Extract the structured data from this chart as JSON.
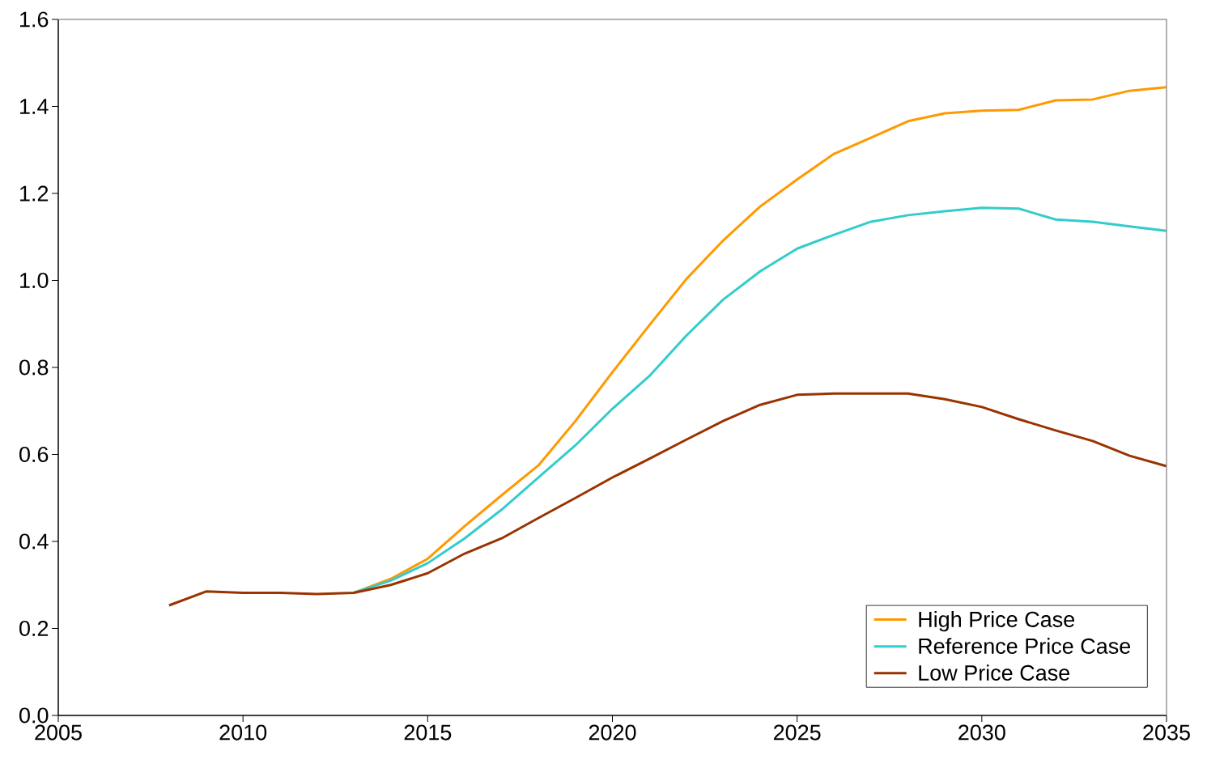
{
  "chart_data": {
    "type": "line",
    "x": [
      2008,
      2009,
      2010,
      2011,
      2012,
      2013,
      2014,
      2015,
      2016,
      2017,
      2018,
      2019,
      2020,
      2021,
      2022,
      2023,
      2024,
      2025,
      2026,
      2027,
      2028,
      2029,
      2030,
      2031,
      2032,
      2033,
      2034,
      2035
    ],
    "series": [
      {
        "name": "High Price Case",
        "color": "#ff9900",
        "values": [
          null,
          null,
          null,
          null,
          null,
          0.282,
          0.314,
          0.36,
          0.435,
          0.506,
          0.575,
          0.677,
          0.789,
          0.897,
          1.003,
          1.092,
          1.17,
          1.232,
          1.291,
          1.328,
          1.366,
          1.384,
          1.39,
          1.392,
          1.414,
          1.416,
          1.436,
          1.444
        ]
      },
      {
        "name": "Reference Price Case",
        "color": "#33cccc",
        "values": [
          null,
          null,
          null,
          null,
          null,
          0.282,
          0.31,
          0.35,
          0.407,
          0.473,
          0.547,
          0.621,
          0.705,
          0.78,
          0.873,
          0.956,
          1.021,
          1.073,
          1.105,
          1.135,
          1.15,
          1.159,
          1.167,
          1.165,
          1.14,
          1.135,
          1.124,
          1.114
        ]
      },
      {
        "name": "Low Price Case",
        "color": "#993300",
        "values": [
          0.253,
          0.285,
          0.282,
          0.282,
          0.279,
          0.282,
          0.3,
          0.327,
          0.372,
          0.407,
          0.454,
          0.5,
          0.547,
          0.59,
          0.634,
          0.677,
          0.714,
          0.737,
          0.74,
          0.74,
          0.74,
          0.727,
          0.709,
          0.681,
          0.655,
          0.631,
          0.597,
          0.573
        ]
      }
    ],
    "xlim": [
      2005,
      2035
    ],
    "xticks": [
      2005,
      2010,
      2015,
      2020,
      2025,
      2030,
      2035
    ],
    "ylim": [
      0,
      1.6
    ],
    "yticks": [
      {
        "value": 0,
        "label": "0.0"
      },
      0.2,
      0.4,
      0.6,
      0.8,
      {
        "value": 1.0,
        "label": "1.0"
      },
      1.2,
      1.4,
      1.6
    ],
    "legend": "bottom right",
    "line_style": "solid",
    "marker": "none"
  }
}
